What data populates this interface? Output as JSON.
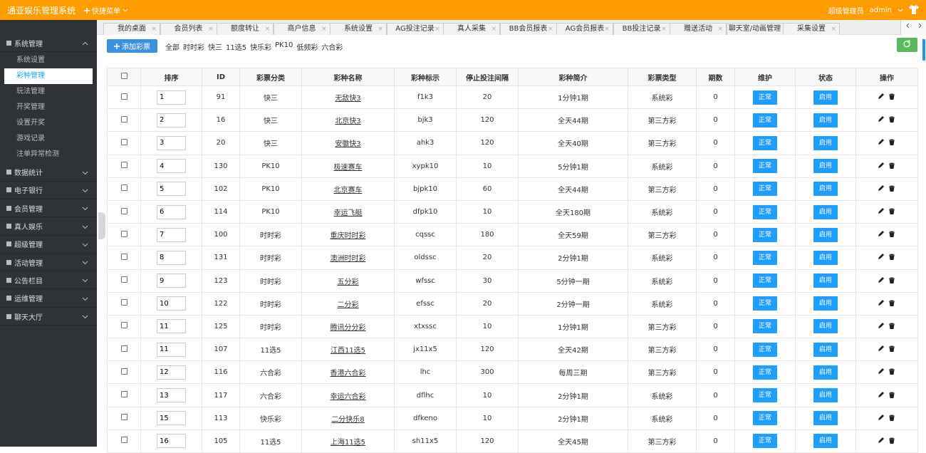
{
  "header": {
    "title": "通亚娱乐管理系统",
    "quick_menu": "快捷菜单",
    "role": "超级管理员",
    "user": "admin"
  },
  "sidebar": {
    "active_index": 1,
    "sections": [
      {
        "label": "系统管理",
        "items": [
          "系统设置",
          "彩种管理",
          "玩法管理",
          "开奖管理",
          "设置开奖",
          "游戏记录",
          "注单异常检测"
        ]
      },
      {
        "label": "数据统计"
      },
      {
        "label": "电子银行"
      },
      {
        "label": "会员管理"
      },
      {
        "label": "真人娱乐"
      },
      {
        "label": "超级管理"
      },
      {
        "label": "活动管理"
      },
      {
        "label": "公告栏目"
      },
      {
        "label": "运维管理"
      },
      {
        "label": "聊天大厅"
      }
    ]
  },
  "tabs": [
    "我的桌面",
    "会员列表",
    "额度转让",
    "商户信息",
    "系统设置",
    "AG投注记录",
    "真人采集",
    "BB会员报表",
    "AG会员报表",
    "BB投注记录",
    "赠送活动",
    "聊天室/动画管理",
    "采集设置"
  ],
  "toolbar": {
    "add_button": "添加彩票",
    "filters": [
      "全部",
      "时时彩",
      "快三",
      "11选5",
      "快乐彩",
      "PK10",
      "低频彩",
      "六合彩"
    ]
  },
  "table": {
    "headers": [
      "排序",
      "ID",
      "彩票分类",
      "彩种名称",
      "彩种标示",
      "停止投注间隔",
      "彩种简介",
      "彩票类型",
      "期数",
      "维护",
      "状态",
      "操作"
    ],
    "rows": [
      [
        1,
        91,
        "快三",
        "无敌快3",
        "f1k3",
        20,
        "1分钟1期",
        "系统彩",
        0,
        "正常",
        "启用"
      ],
      [
        2,
        16,
        "快三",
        "北京快3",
        "bjk3",
        120,
        "全天44期",
        "第三方彩",
        0,
        "正常",
        "启用"
      ],
      [
        3,
        20,
        "快三",
        "安徽快3",
        "ahk3",
        120,
        "全天40期",
        "第三方彩",
        0,
        "正常",
        "启用"
      ],
      [
        4,
        130,
        "PK10",
        "极速赛车",
        "xypk10",
        10,
        "5分钟1期",
        "系统彩",
        0,
        "正常",
        "启用"
      ],
      [
        5,
        102,
        "PK10",
        "北京赛车",
        "bjpk10",
        60,
        "全天44期",
        "第三方彩",
        0,
        "正常",
        "启用"
      ],
      [
        6,
        114,
        "PK10",
        "幸运飞艇",
        "dfpk10",
        10,
        "全天180期",
        "系统彩",
        0,
        "正常",
        "启用"
      ],
      [
        7,
        100,
        "时时彩",
        "重庆时时彩",
        "cqssc",
        180,
        "全天59期",
        "第三方彩",
        0,
        "正常",
        "启用"
      ],
      [
        8,
        131,
        "时时彩",
        "澳洲时时彩",
        "oldssc",
        20,
        "2分钟1期",
        "系统彩",
        0,
        "正常",
        "启用"
      ],
      [
        9,
        123,
        "时时彩",
        "五分彩",
        "wfssc",
        30,
        "5分钟一期",
        "系统彩",
        0,
        "正常",
        "启用"
      ],
      [
        10,
        122,
        "时时彩",
        "二分彩",
        "efssc",
        20,
        "2分钟一期",
        "系统彩",
        0,
        "正常",
        "启用"
      ],
      [
        11,
        125,
        "时时彩",
        "腾讯分分彩",
        "xtxssc",
        10,
        "1分钟1期",
        "第三方彩",
        0,
        "正常",
        "启用"
      ],
      [
        11,
        107,
        "11选5",
        "江西11选5",
        "jx11x5",
        120,
        "全天42期",
        "第三方彩",
        0,
        "正常",
        "启用"
      ],
      [
        12,
        116,
        "六合彩",
        "香港六合彩",
        "lhc",
        300,
        "每周三期",
        "第三方彩",
        0,
        "正常",
        "启用"
      ],
      [
        13,
        117,
        "六合彩",
        "幸运六合彩",
        "dflhc",
        10,
        "2分钟1期",
        "系统彩",
        0,
        "正常",
        "启用"
      ],
      [
        15,
        113,
        "快乐彩",
        "二分快乐8",
        "dfkeno",
        10,
        "2分钟1期",
        "系统彩",
        0,
        "正常",
        "启用"
      ],
      [
        16,
        105,
        "11选5",
        "上海11选5",
        "sh11x5",
        120,
        "全天45期",
        "第三方彩",
        0,
        "正常",
        "启用"
      ]
    ]
  }
}
